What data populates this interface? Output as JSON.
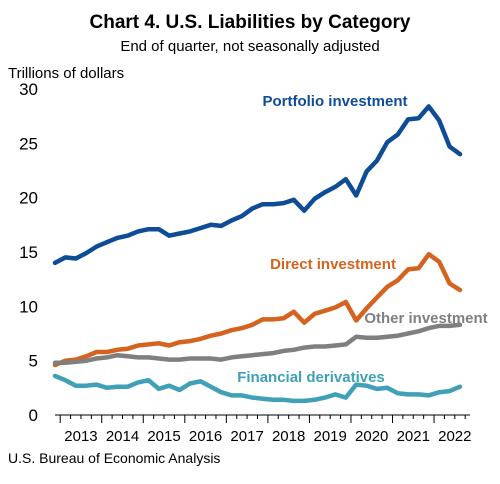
{
  "chart_data": {
    "type": "line",
    "title": "Chart 4. U.S. Liabilities by Category",
    "subtitle": "End of quarter, not seasonally adjusted",
    "ylabel": "Trillions of dollars",
    "source": "U.S. Bureau of Economic Analysis",
    "ylim": [
      0,
      30
    ],
    "yticks": [
      "0",
      "5",
      "10",
      "15",
      "20",
      "25",
      "30"
    ],
    "grid": false,
    "legend": "inline labels",
    "x_start": "2012 Q4",
    "x_end": "2022 Q3",
    "xticks": [
      "2013",
      "2014",
      "2015",
      "2016",
      "2017",
      "2018",
      "2019",
      "2020",
      "2021",
      "2022"
    ],
    "series": [
      {
        "name": "Portfolio investment",
        "color": "#0f4c98",
        "values": [
          14.0,
          14.5,
          14.4,
          14.9,
          15.5,
          15.9,
          16.3,
          16.5,
          16.9,
          17.1,
          17.1,
          16.5,
          16.7,
          16.9,
          17.2,
          17.5,
          17.4,
          17.9,
          18.3,
          19.0,
          19.4,
          19.4,
          19.5,
          19.8,
          18.8,
          19.9,
          20.5,
          21.0,
          21.7,
          20.2,
          22.4,
          23.4,
          25.1,
          25.8,
          27.2,
          27.3,
          28.4,
          27.1,
          24.7,
          24.0
        ]
      },
      {
        "name": "Direct investment",
        "color": "#d4631f",
        "values": [
          4.6,
          5.0,
          5.1,
          5.4,
          5.8,
          5.8,
          6.0,
          6.1,
          6.4,
          6.5,
          6.6,
          6.4,
          6.7,
          6.8,
          7.0,
          7.3,
          7.5,
          7.8,
          8.0,
          8.3,
          8.8,
          8.8,
          8.9,
          9.5,
          8.5,
          9.3,
          9.6,
          9.9,
          10.4,
          8.7,
          9.8,
          10.8,
          11.8,
          12.4,
          13.4,
          13.5,
          14.8,
          14.1,
          12.1,
          11.5
        ]
      },
      {
        "name": "Other investment",
        "color": "#7f7f7f",
        "values": [
          4.8,
          4.8,
          4.9,
          5.0,
          5.2,
          5.3,
          5.5,
          5.4,
          5.3,
          5.3,
          5.2,
          5.1,
          5.1,
          5.2,
          5.2,
          5.2,
          5.1,
          5.3,
          5.4,
          5.5,
          5.6,
          5.7,
          5.9,
          6.0,
          6.2,
          6.3,
          6.3,
          6.4,
          6.5,
          7.2,
          7.1,
          7.1,
          7.2,
          7.3,
          7.5,
          7.7,
          8.0,
          8.2,
          8.2,
          8.3
        ]
      },
      {
        "name": "Financial derivatives",
        "color": "#3fa0b7",
        "values": [
          3.6,
          3.2,
          2.7,
          2.7,
          2.8,
          2.5,
          2.6,
          2.6,
          3.0,
          3.2,
          2.4,
          2.7,
          2.3,
          2.9,
          3.1,
          2.6,
          2.1,
          1.8,
          1.8,
          1.6,
          1.5,
          1.4,
          1.4,
          1.3,
          1.3,
          1.4,
          1.6,
          1.9,
          1.6,
          2.8,
          2.7,
          2.4,
          2.5,
          2.0,
          1.9,
          1.9,
          1.8,
          2.1,
          2.2,
          2.6
        ]
      }
    ]
  }
}
